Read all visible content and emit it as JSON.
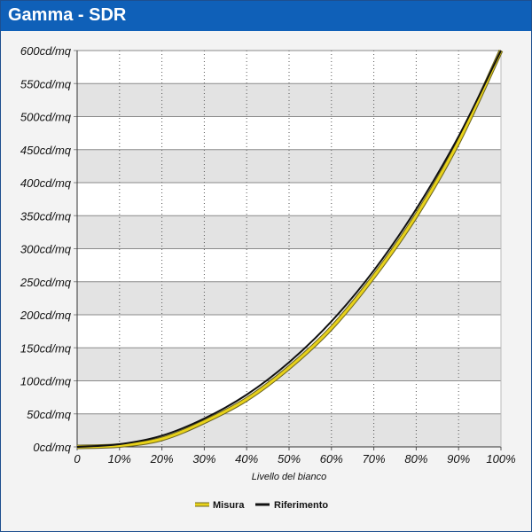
{
  "window": {
    "title": "Gamma - SDR"
  },
  "chart_data": {
    "type": "line",
    "title": "Gamma - SDR",
    "xlabel": "Livello del bianco",
    "ylabel": "",
    "x_unit": "%",
    "y_unit": "cd/mq",
    "xlim": [
      0,
      100
    ],
    "ylim": [
      0,
      600
    ],
    "x_ticks": [
      0,
      10,
      20,
      30,
      40,
      50,
      60,
      70,
      80,
      90,
      100
    ],
    "x_tick_labels": [
      "0",
      "10%",
      "20%",
      "30%",
      "40%",
      "50%",
      "60%",
      "70%",
      "80%",
      "90%",
      "100%"
    ],
    "y_ticks": [
      0,
      50,
      100,
      150,
      200,
      250,
      300,
      350,
      400,
      450,
      500,
      550,
      600
    ],
    "y_tick_labels": [
      "0cd/mq",
      "50cd/mq",
      "100cd/mq",
      "150cd/mq",
      "200cd/mq",
      "250cd/mq",
      "300cd/mq",
      "350cd/mq",
      "400cd/mq",
      "450cd/mq",
      "500cd/mq",
      "550cd/mq",
      "600cd/mq"
    ],
    "grid": {
      "horizontal": true,
      "vertical_dotted": true,
      "alternating_bands": true
    },
    "legend_position": "bottom-center",
    "series": [
      {
        "name": "Misura",
        "color": "#e8d21a",
        "x": [
          0,
          10,
          20,
          30,
          40,
          50,
          60,
          70,
          80,
          90,
          100
        ],
        "values": [
          0,
          2,
          12,
          38,
          72,
          120,
          180,
          258,
          350,
          462,
          600
        ]
      },
      {
        "name": "Riferimento",
        "color": "#111111",
        "x": [
          0,
          10,
          20,
          30,
          40,
          50,
          60,
          70,
          80,
          90,
          100
        ],
        "values": [
          0,
          4,
          17,
          43,
          79,
          128,
          190,
          267,
          360,
          470,
          600
        ]
      }
    ]
  }
}
